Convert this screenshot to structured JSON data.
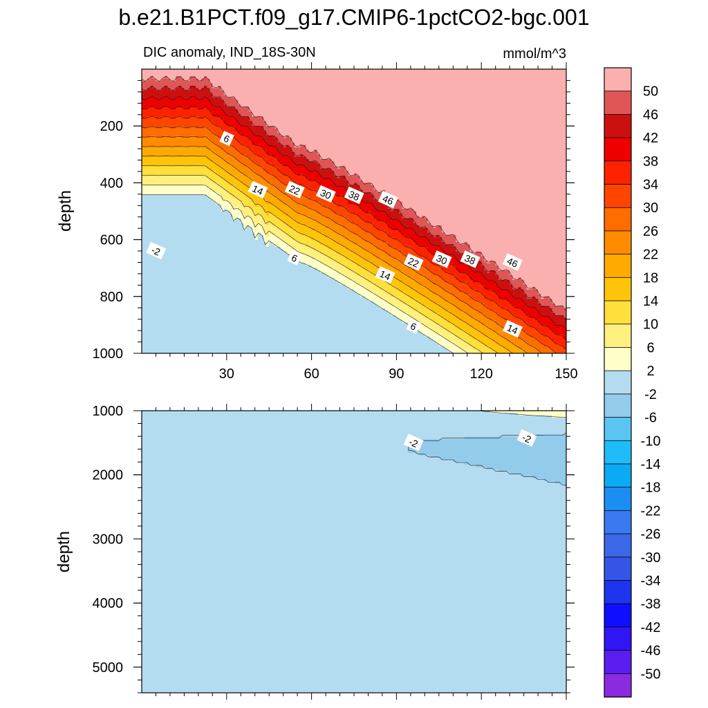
{
  "title": "b.e21.B1PCT.f09_g17.CMIP6-1pctCO2-bgc.001",
  "subtitle_left": "DIC anomaly, IND_18S-30N",
  "units": "mmol/m^3",
  "chart_data": {
    "type": "contour",
    "variable": "DIC anomaly",
    "region": "IND_18S-30N",
    "units": "mmol/m^3",
    "x_axis": {
      "label": "",
      "range": [
        0,
        150
      ],
      "ticks": [
        30,
        60,
        90,
        120,
        150
      ],
      "tick_labels": [
        "30",
        "60",
        "90",
        "120",
        "150"
      ]
    },
    "levels": [
      -50,
      -46,
      -42,
      -38,
      -34,
      -30,
      -26,
      -22,
      -18,
      -14,
      -10,
      -6,
      -2,
      2,
      6,
      10,
      14,
      18,
      22,
      26,
      30,
      34,
      38,
      42,
      46,
      50
    ],
    "level_labels": [
      "-50",
      "-46",
      "-42",
      "-38",
      "-34",
      "-30",
      "-26",
      "-22",
      "-18",
      "-14",
      "-10",
      "-6",
      "-2",
      "2",
      "6",
      "10",
      "14",
      "18",
      "22",
      "26",
      "30",
      "34",
      "38",
      "42",
      "46",
      "50"
    ],
    "colors": [
      "#8a2be2",
      "#5a1ef0",
      "#3016f5",
      "#0f0fff",
      "#1d35ee",
      "#3455e6",
      "#3a68e6",
      "#3a79ef",
      "#1b8ef2",
      "#0aaaf5",
      "#1ebcf8",
      "#5ac4f2",
      "#93cbeb",
      "#b4dcf0",
      "#ffffc8",
      "#fff080",
      "#ffdf3c",
      "#ffc40a",
      "#ffaa00",
      "#ff8c00",
      "#ff6c00",
      "#ff4500",
      "#ff2200",
      "#ee0000",
      "#cc1010",
      "#e05656",
      "#fbb0b0"
    ],
    "panels": [
      {
        "name": "upper",
        "y_axis": {
          "label": "depth",
          "range": [
            0,
            1000
          ],
          "ticks": [
            200,
            400,
            600,
            800,
            1000
          ],
          "tick_labels": [
            "200",
            "400",
            "600",
            "800",
            "1000"
          ]
        },
        "contour_labels": [
          {
            "text": "6",
            "x": 30,
            "depth": 245
          },
          {
            "text": "14",
            "x": 41,
            "depth": 425
          },
          {
            "text": "22",
            "x": 54,
            "depth": 425
          },
          {
            "text": "30",
            "x": 65,
            "depth": 440
          },
          {
            "text": "38",
            "x": 75,
            "depth": 445
          },
          {
            "text": "46",
            "x": 87,
            "depth": 460
          },
          {
            "text": "-2",
            "x": 5,
            "depth": 640
          },
          {
            "text": "6",
            "x": 54,
            "depth": 665
          },
          {
            "text": "22",
            "x": 96,
            "depth": 680
          },
          {
            "text": "30",
            "x": 106,
            "depth": 670
          },
          {
            "text": "38",
            "x": 116,
            "depth": 670
          },
          {
            "text": "46",
            "x": 131,
            "depth": 680
          },
          {
            "text": "14",
            "x": 86,
            "depth": 725
          },
          {
            "text": "6",
            "x": 96,
            "depth": 905
          },
          {
            "text": "14",
            "x": 131,
            "depth": 915
          }
        ]
      },
      {
        "name": "lower",
        "y_axis": {
          "label": "depth",
          "range": [
            1000,
            5400
          ],
          "ticks": [
            1000,
            2000,
            3000,
            4000,
            5000
          ],
          "tick_labels": [
            "1000",
            "2000",
            "3000",
            "4000",
            "5000"
          ]
        },
        "contour_labels": [
          {
            "text": "-2",
            "x": 96,
            "depth": 1500
          },
          {
            "text": "-2",
            "x": 136,
            "depth": 1430
          }
        ]
      }
    ]
  }
}
